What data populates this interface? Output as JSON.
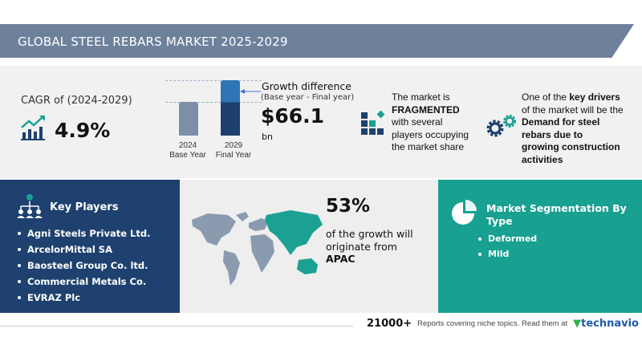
{
  "title": "GLOBAL STEEL REBARS MARKET 2025-2029",
  "cagr": {
    "label": "CAGR of (2024-2029)",
    "value": "4.9%",
    "icon": "growth-chart-icon"
  },
  "growth": {
    "title": "Growth difference",
    "subtitle": "(Base year - Final year)",
    "value": "$66.1",
    "unit": "bn",
    "bars": [
      {
        "year": "2024",
        "label": "Base Year"
      },
      {
        "year": "2029",
        "label": "Final Year"
      }
    ]
  },
  "fragmented": {
    "line1": "The market is",
    "bold": "FRAGMENTED",
    "line2": "with several",
    "line3": "players occupying",
    "line4": "the market share"
  },
  "drivers": {
    "l1": "One of the ",
    "l1b": "key drivers",
    "l2": "of the market will be the",
    "b1": "Demand for steel",
    "b2": "rebars due to",
    "b3": "growing construction",
    "b4": "activities"
  },
  "key_players": {
    "title": "Key Players",
    "items": [
      "Agni Steels Private Ltd.",
      "ArcelorMittal SA",
      "Baosteel Group Co. ltd.",
      "Commercial Metals Co.",
      "EVRAZ Plc"
    ]
  },
  "region": {
    "percent": "53%",
    "l1": "of the growth will",
    "l2": "originate from",
    "region": "APAC"
  },
  "segmentation": {
    "title1": "Market Segmentation By",
    "title2": "Type",
    "items": [
      "Deformed",
      "Mild"
    ]
  },
  "footer": {
    "count": "21000+",
    "text": "Reports covering niche topics. Read them at",
    "brand": "technavio"
  },
  "colors": {
    "header": "#6d819b",
    "navy": "#1e416f",
    "teal": "#18a090",
    "bar_base": "#7d8fa6",
    "bar_final_top": "#2e75b6",
    "bar_final": "#1e3f6e"
  }
}
